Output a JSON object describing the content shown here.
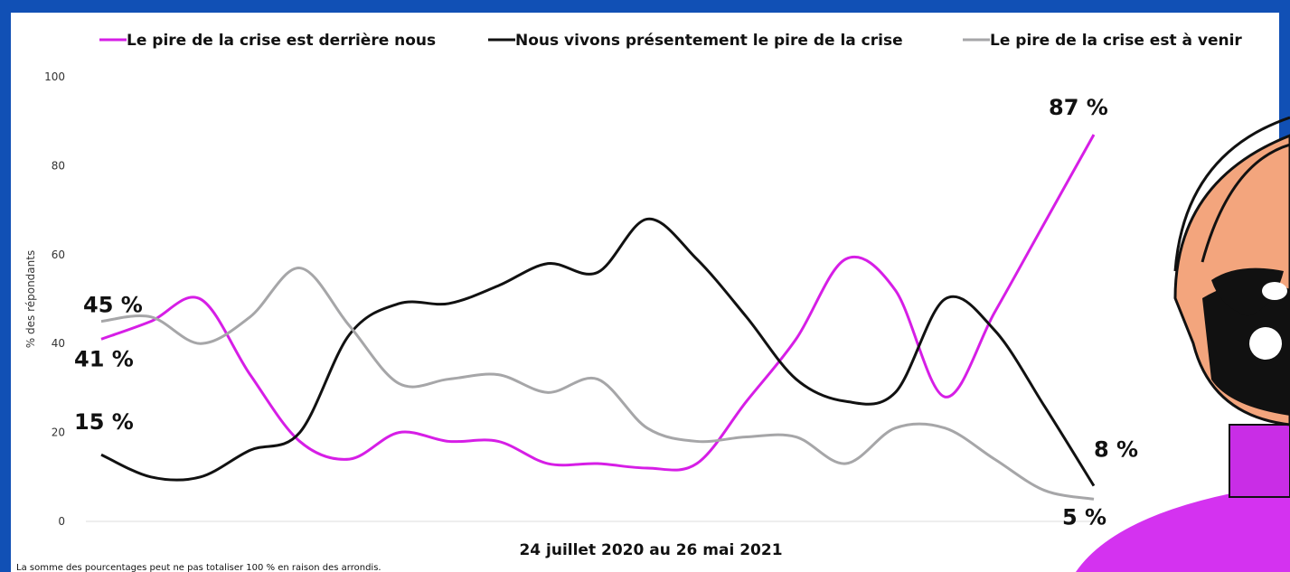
{
  "chart_data": {
    "type": "line",
    "x_label": "24 juillet 2020 au 26 mai 2021",
    "y_label": "% des répondants",
    "footnote": "La somme des pourcentages peut ne pas totaliser 100 % en raison des arrondis.",
    "categories": [
      null,
      null,
      null,
      null,
      null,
      null,
      null,
      null,
      null,
      null,
      null,
      null,
      null,
      null,
      null,
      null,
      null,
      null,
      null,
      null,
      null
    ],
    "ylim": [
      0,
      100
    ],
    "yticks": [
      0,
      20,
      40,
      60,
      80,
      100
    ],
    "series": [
      {
        "name": "Le pire de la crise est derrière nous",
        "color": "#d61ee6",
        "values": [
          41,
          45,
          50,
          33,
          18,
          14,
          20,
          18,
          18,
          13,
          13,
          12,
          13,
          27,
          41,
          59,
          52,
          28,
          47,
          67,
          87
        ],
        "value_labels": [
          "41 %",
          null,
          null,
          null,
          null,
          null,
          null,
          null,
          null,
          null,
          null,
          null,
          null,
          null,
          null,
          null,
          null,
          null,
          null,
          null,
          "87 %"
        ]
      },
      {
        "name": "Nous vivons présentement le pire de la crise",
        "color": "#111111",
        "values": [
          15,
          10,
          10,
          16,
          20,
          42,
          49,
          49,
          53,
          58,
          56,
          68,
          59,
          46,
          32,
          27,
          29,
          50,
          43,
          26,
          8
        ],
        "value_labels": [
          "15 %",
          null,
          null,
          null,
          null,
          null,
          null,
          null,
          null,
          null,
          null,
          null,
          null,
          null,
          null,
          null,
          null,
          null,
          null,
          null,
          "8 %"
        ]
      },
      {
        "name": "Le pire de la crise est à venir",
        "color": "#a6a6a8",
        "values": [
          45,
          46,
          40,
          46,
          57,
          44,
          31,
          32,
          33,
          29,
          32,
          21,
          18,
          19,
          19,
          13,
          21,
          21,
          14,
          7,
          5
        ],
        "value_labels": [
          "45 %",
          null,
          null,
          null,
          null,
          null,
          null,
          null,
          null,
          null,
          null,
          null,
          null,
          null,
          null,
          null,
          null,
          null,
          null,
          null,
          "5 %"
        ]
      }
    ]
  }
}
